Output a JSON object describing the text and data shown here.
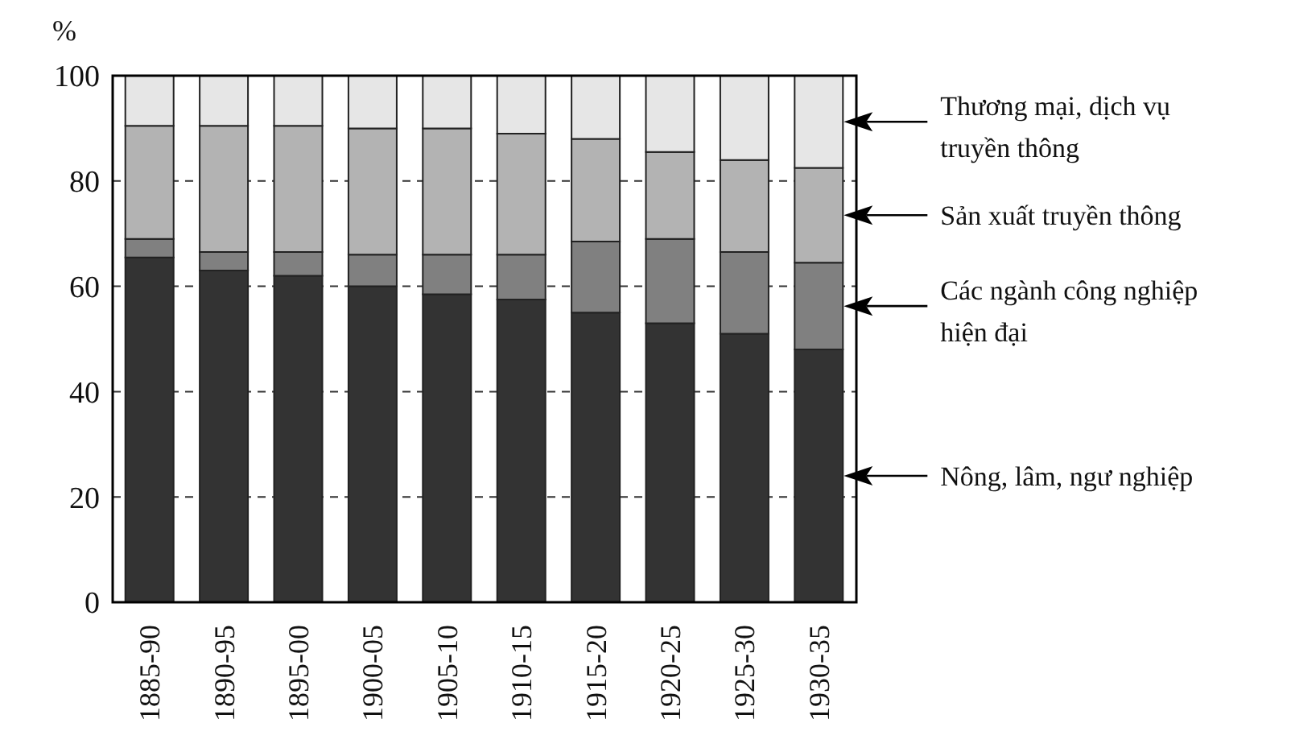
{
  "chart_data": {
    "type": "bar",
    "stacked": true,
    "ylabel": "%",
    "categories": [
      "1885-90",
      "1890-95",
      "1895-00",
      "1900-05",
      "1905-10",
      "1910-15",
      "1915-20",
      "1920-25",
      "1925-30",
      "1930-35"
    ],
    "series": [
      {
        "name": "Nông, lâm, ngư nghiệp",
        "color": "#333333",
        "values": [
          65.5,
          63,
          62,
          60,
          58.5,
          57.5,
          55,
          53,
          51,
          48
        ]
      },
      {
        "name": "Các ngành công nghiệp hiện đại",
        "color": "#808080",
        "values": [
          3.5,
          3.5,
          4.5,
          6,
          7.5,
          8.5,
          13.5,
          16,
          15.5,
          16.5
        ]
      },
      {
        "name": "Sản xuất truyền thông",
        "color": "#b3b3b3",
        "values": [
          21.5,
          24,
          24,
          24,
          24,
          23,
          19.5,
          16.5,
          17.5,
          18
        ]
      },
      {
        "name": "Thương mại, dịch vụ truyền thông",
        "color": "#e6e6e6",
        "values": [
          9.5,
          9.5,
          9.5,
          10,
          10,
          11,
          12,
          14.5,
          16,
          17.5
        ]
      }
    ],
    "ylim": [
      0,
      100
    ],
    "yticks": [
      0,
      20,
      40,
      60,
      80,
      100
    ],
    "grid": "y",
    "legend": "right"
  }
}
